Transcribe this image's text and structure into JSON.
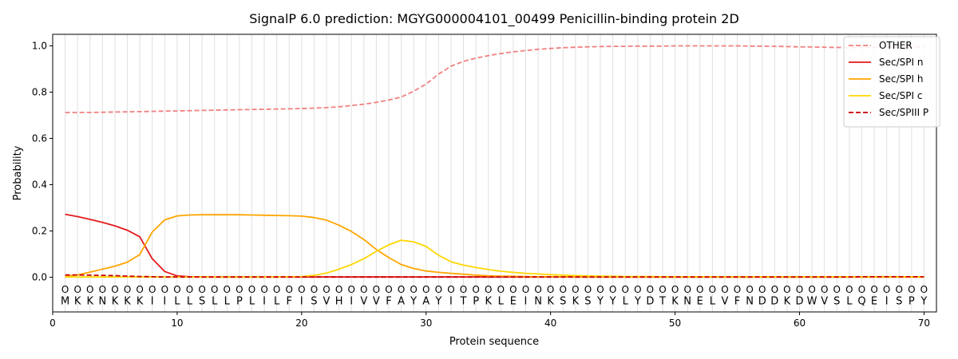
{
  "chart_data": {
    "type": "line",
    "title": "SignalP 6.0 prediction: MGYG000004101_00499 Penicillin-binding protein 2D",
    "xlabel": "Protein sequence",
    "ylabel": "Probability",
    "xlim": [
      0,
      71
    ],
    "ylim": [
      -0.15,
      1.05
    ],
    "x_ticks": [
      "0",
      "10",
      "20",
      "30",
      "40",
      "50",
      "60",
      "70"
    ],
    "y_ticks": [
      "0.0",
      "0.2",
      "0.4",
      "0.6",
      "0.8",
      "1.0"
    ],
    "legend_position": "top-right",
    "grid": "vertical lines at each residue",
    "residue_marker": "O",
    "sequence": [
      "M",
      "K",
      "K",
      "N",
      "K",
      "K",
      "K",
      "I",
      "I",
      "L",
      "L",
      "S",
      "L",
      "L",
      "P",
      "L",
      "I",
      "L",
      "F",
      "I",
      "S",
      "V",
      "H",
      "I",
      "V",
      "V",
      "F",
      "A",
      "Y",
      "A",
      "Y",
      "I",
      "T",
      "P",
      "K",
      "L",
      "E",
      "I",
      "N",
      "K",
      "S",
      "K",
      "S",
      "Y",
      "Y",
      "L",
      "Y",
      "D",
      "T",
      "K",
      "N",
      "E",
      "L",
      "V",
      "F",
      "N",
      "D",
      "D",
      "K",
      "D",
      "W",
      "V",
      "S",
      "L",
      "Q",
      "E",
      "I",
      "S",
      "P",
      "Y"
    ],
    "series": [
      {
        "name": "OTHER",
        "color": "#f08080",
        "dash": "dashed",
        "values": [
          0.712,
          0.712,
          0.712,
          0.713,
          0.714,
          0.715,
          0.716,
          0.717,
          0.718,
          0.719,
          0.72,
          0.721,
          0.722,
          0.723,
          0.724,
          0.725,
          0.726,
          0.727,
          0.728,
          0.729,
          0.731,
          0.733,
          0.737,
          0.742,
          0.748,
          0.756,
          0.766,
          0.779,
          0.804,
          0.835,
          0.878,
          0.912,
          0.933,
          0.947,
          0.958,
          0.967,
          0.974,
          0.98,
          0.985,
          0.989,
          0.992,
          0.994,
          0.996,
          0.997,
          0.998,
          0.998,
          0.999,
          0.999,
          0.999,
          1.0,
          1.0,
          1.0,
          1.0,
          1.0,
          1.0,
          0.999,
          0.999,
          0.998,
          0.997,
          0.996,
          0.995,
          0.994,
          0.993,
          0.993,
          0.993,
          0.993,
          0.993,
          0.994,
          0.995,
          0.997
        ]
      },
      {
        "name": "Sec/SPI n",
        "color": "#e41a1c",
        "dash": "solid",
        "values": [
          0.272,
          0.262,
          0.25,
          0.237,
          0.222,
          0.203,
          0.175,
          0.08,
          0.025,
          0.006,
          0.002,
          0.001,
          0.001,
          0.001,
          0.001,
          0.001,
          0.001,
          0.001,
          0.001,
          0.001,
          0.001,
          0.001,
          0.001,
          0.001,
          0.001,
          0.001,
          0.001,
          0.001,
          0.001,
          0.001,
          0.001,
          0.001,
          0.001,
          0.001,
          0.001,
          0.001,
          0.001,
          0.001,
          0.001,
          0.001,
          0.001,
          0.001,
          0.001,
          0.001,
          0.001,
          0.001,
          0.001,
          0.001,
          0.001,
          0.001,
          0.001,
          0.001,
          0.001,
          0.001,
          0.001,
          0.001,
          0.001,
          0.001,
          0.001,
          0.001,
          0.001,
          0.001,
          0.001,
          0.001,
          0.001,
          0.001,
          0.001,
          0.001,
          0.001,
          0.001
        ]
      },
      {
        "name": "Sec/SPI h",
        "color": "#ffa500",
        "dash": "solid",
        "values": [
          0.004,
          0.01,
          0.022,
          0.035,
          0.048,
          0.065,
          0.098,
          0.195,
          0.248,
          0.265,
          0.269,
          0.27,
          0.27,
          0.27,
          0.27,
          0.269,
          0.268,
          0.267,
          0.266,
          0.264,
          0.258,
          0.247,
          0.225,
          0.198,
          0.163,
          0.12,
          0.085,
          0.055,
          0.038,
          0.027,
          0.021,
          0.017,
          0.013,
          0.009,
          0.006,
          0.005,
          0.004,
          0.003,
          0.002,
          0.002,
          0.002,
          0.001,
          0.001,
          0.001,
          0.001,
          0.001,
          0.001,
          0.001,
          0.001,
          0.001,
          0.001,
          0.001,
          0.001,
          0.001,
          0.001,
          0.001,
          0.001,
          0.001,
          0.001,
          0.001,
          0.001,
          0.001,
          0.001,
          0.001,
          0.001,
          0.001,
          0.001,
          0.001,
          0.001,
          0.001
        ]
      },
      {
        "name": "Sec/SPI c",
        "color": "#ffd700",
        "dash": "solid",
        "values": [
          0.001,
          0.001,
          0.001,
          0.001,
          0.001,
          0.001,
          0.001,
          0.001,
          0.001,
          0.001,
          0.001,
          0.001,
          0.001,
          0.001,
          0.001,
          0.001,
          0.001,
          0.001,
          0.002,
          0.003,
          0.008,
          0.018,
          0.035,
          0.055,
          0.08,
          0.112,
          0.14,
          0.16,
          0.153,
          0.133,
          0.095,
          0.067,
          0.052,
          0.042,
          0.033,
          0.026,
          0.021,
          0.017,
          0.014,
          0.011,
          0.009,
          0.007,
          0.006,
          0.005,
          0.004,
          0.003,
          0.003,
          0.003,
          0.002,
          0.002,
          0.002,
          0.002,
          0.002,
          0.002,
          0.002,
          0.002,
          0.002,
          0.002,
          0.002,
          0.002,
          0.002,
          0.002,
          0.002,
          0.002,
          0.002,
          0.002,
          0.002,
          0.002,
          0.002,
          0.002
        ]
      },
      {
        "name": "Sec/SPIII P",
        "color": "#cc0000",
        "dash": "dashed",
        "values": [
          0.01,
          0.01,
          0.009,
          0.008,
          0.007,
          0.005,
          0.003,
          0.002,
          0.001,
          0.001,
          0.001,
          0.001,
          0.001,
          0.001,
          0.001,
          0.001,
          0.001,
          0.001,
          0.001,
          0.001,
          0.001,
          0.001,
          0.001,
          0.001,
          0.001,
          0.001,
          0.001,
          0.001,
          0.001,
          0.001,
          0.001,
          0.001,
          0.001,
          0.001,
          0.001,
          0.001,
          0.001,
          0.001,
          0.001,
          0.001,
          0.001,
          0.001,
          0.001,
          0.001,
          0.001,
          0.001,
          0.001,
          0.001,
          0.001,
          0.001,
          0.001,
          0.001,
          0.001,
          0.001,
          0.001,
          0.001,
          0.001,
          0.001,
          0.001,
          0.001,
          0.001,
          0.001,
          0.001,
          0.001,
          0.002,
          0.002,
          0.002,
          0.002,
          0.002,
          0.002
        ]
      }
    ]
  }
}
